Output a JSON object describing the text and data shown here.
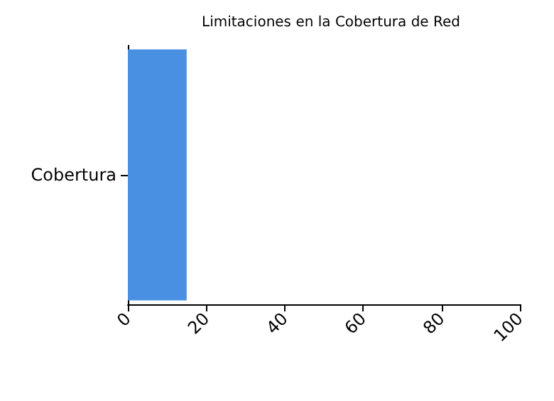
{
  "chart_data": {
    "type": "bar",
    "title": "Limitaciones en la Cobertura de Red",
    "orientation": "horizontal",
    "categories": [
      "Cobertura"
    ],
    "values": [
      15
    ],
    "color": "#4a90e2",
    "xlim": [
      0,
      100
    ],
    "xticks": [
      0,
      20,
      40,
      60,
      80,
      100
    ],
    "grid": false
  }
}
